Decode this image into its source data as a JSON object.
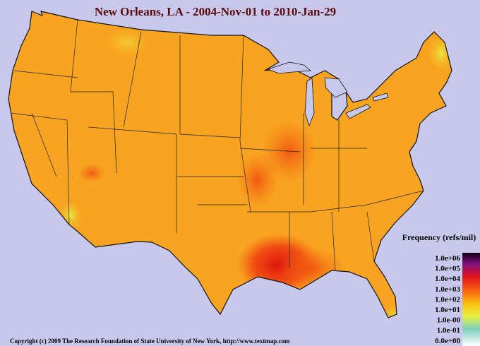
{
  "title": "New Orleans, LA - 2004-Nov-01 to 2010-Jan-29",
  "legend": {
    "title": "Frequency (refs/mil)",
    "labels": [
      "1.0e+06",
      "1.0e+05",
      "1.0e+04",
      "1.0e+03",
      "1.0e+02",
      "1.0e+01",
      "1.0e-00",
      "1.0e-01",
      "0.0e+00"
    ]
  },
  "footer": "Copyright (c) 2009 The Research Foundation of State University of New York, http://www.textmap.com"
}
